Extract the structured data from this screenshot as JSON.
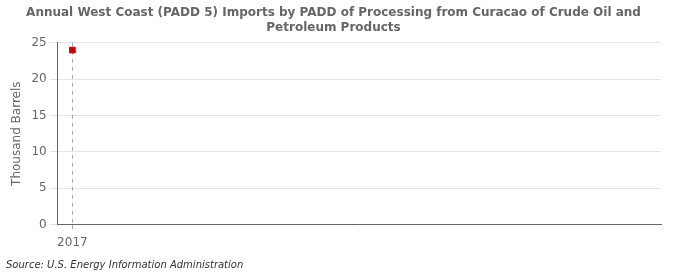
{
  "chart_data": {
    "type": "scatter",
    "title": "Annual West Coast (PADD 5) Imports by PADD of Processing from Curacao of Crude Oil and\nPetroleum Products",
    "ylabel": "Thousand Barrels",
    "annotations": [
      "Source: U.S. Energy Information Administration"
    ],
    "x": [
      2017
    ],
    "values": [
      24
    ],
    "color": "#cc0000",
    "marker": "square",
    "xlim": [
      2016.85,
      2023.0
    ],
    "xticks": [
      2017
    ],
    "ylim": [
      0,
      25
    ],
    "yticks": [
      0,
      5,
      10,
      15,
      20,
      25
    ],
    "grid": true
  }
}
